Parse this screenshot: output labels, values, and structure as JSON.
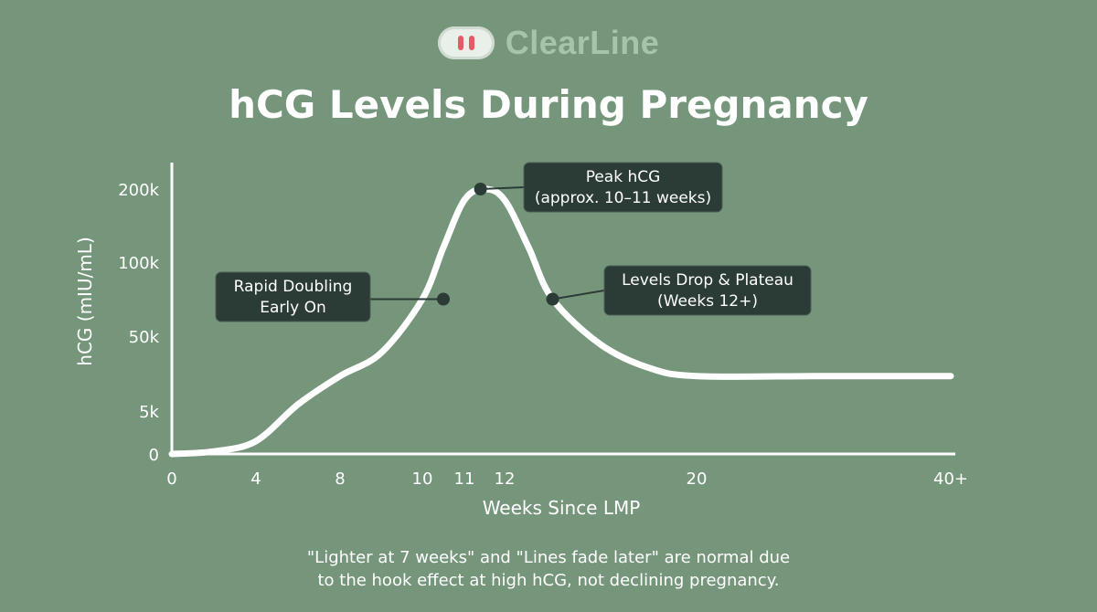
{
  "brand": {
    "name": "ClearLine",
    "icon": "pregnancy-test-icon",
    "accent_color": "#e45a66"
  },
  "page_title": "hCG Levels During Pregnancy",
  "chart_data": {
    "type": "line",
    "title": "hCG Levels During Pregnancy",
    "xlabel": "Weeks Since LMP",
    "ylabel": "hCG (mIU/mL)",
    "x_ticks": [
      "0",
      "4",
      "8",
      "10",
      "11",
      "12",
      "20",
      "40+"
    ],
    "y_ticks": [
      "0",
      "5k",
      "50k",
      "100k",
      "200k"
    ],
    "y_scale": "non-linear (categorical tick spacing)",
    "grid": false,
    "series": [
      {
        "color": "#ffffff",
        "x": [
          0,
          2,
          4,
          6,
          8,
          9,
          10,
          10.5,
          11,
          11.5,
          12,
          13,
          14,
          16,
          18,
          20,
          30,
          40
        ],
        "y": [
          0,
          300,
          1500,
          9000,
          26000,
          40000,
          75000,
          120000,
          185000,
          200000,
          185000,
          120000,
          75000,
          45000,
          31000,
          26000,
          26000,
          26000
        ]
      }
    ],
    "annotations": [
      {
        "x": 10.5,
        "y": 75000,
        "lines": [
          "Rapid Doubling",
          "Early On"
        ]
      },
      {
        "x": 11.4,
        "y": 200000,
        "lines": [
          "Peak hCG",
          "(approx. 10–11 weeks)"
        ]
      },
      {
        "x": 14,
        "y": 75000,
        "lines": [
          "Levels Drop & Plateau",
          "(Weeks 12+)"
        ]
      }
    ]
  },
  "footnote": {
    "line1": "\"Lighter at 7 weeks\" and \"Lines fade later\" are normal due",
    "line2": "to the hook effect at high hCG, not declining pregnancy."
  }
}
